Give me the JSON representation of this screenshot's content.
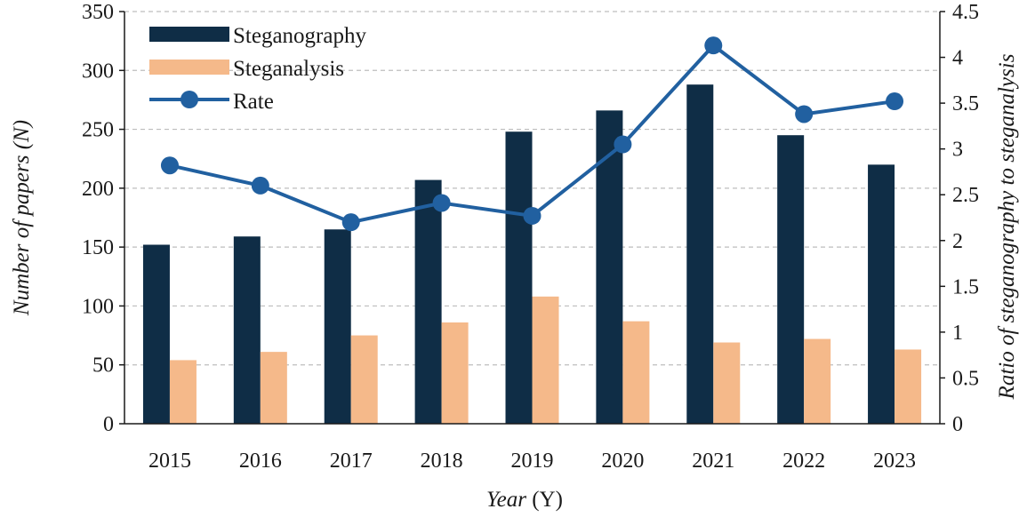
{
  "chart_data": {
    "type": "bar",
    "title": "",
    "xlabel": "Year",
    "xlabel_unit": "(Y)",
    "ylabel": "Number of papers",
    "ylabel_unit": "(N)",
    "y2label": "Ratio of steganography to steganalysis",
    "categories": [
      "2015",
      "2016",
      "2017",
      "2018",
      "2019",
      "2020",
      "2021",
      "2022",
      "2023"
    ],
    "ylim": [
      0,
      350
    ],
    "yticks": [
      "0",
      "50",
      "100",
      "150",
      "200",
      "250",
      "300",
      "350"
    ],
    "y2lim": [
      0,
      4.5
    ],
    "y2ticks": [
      "0",
      "0.5",
      "1",
      "1.5",
      "2",
      "2.5",
      "3",
      "3.5",
      "4",
      "4.5"
    ],
    "grid": true,
    "legend_position": "top-left",
    "series": [
      {
        "name": "Steganography",
        "type": "bar",
        "axis": "left",
        "color": "#0f2d46",
        "values": [
          152,
          159,
          165,
          207,
          248,
          266,
          288,
          245,
          220
        ]
      },
      {
        "name": "Steganalysis",
        "type": "bar",
        "axis": "left",
        "color": "#f5b98a",
        "values": [
          54,
          61,
          75,
          86,
          108,
          87,
          69,
          72,
          63
        ]
      },
      {
        "name": "Rate",
        "type": "line",
        "axis": "right",
        "color": "#2160a0",
        "values": [
          2.82,
          2.6,
          2.2,
          2.41,
          2.27,
          3.05,
          4.13,
          3.38,
          3.52
        ]
      }
    ]
  }
}
